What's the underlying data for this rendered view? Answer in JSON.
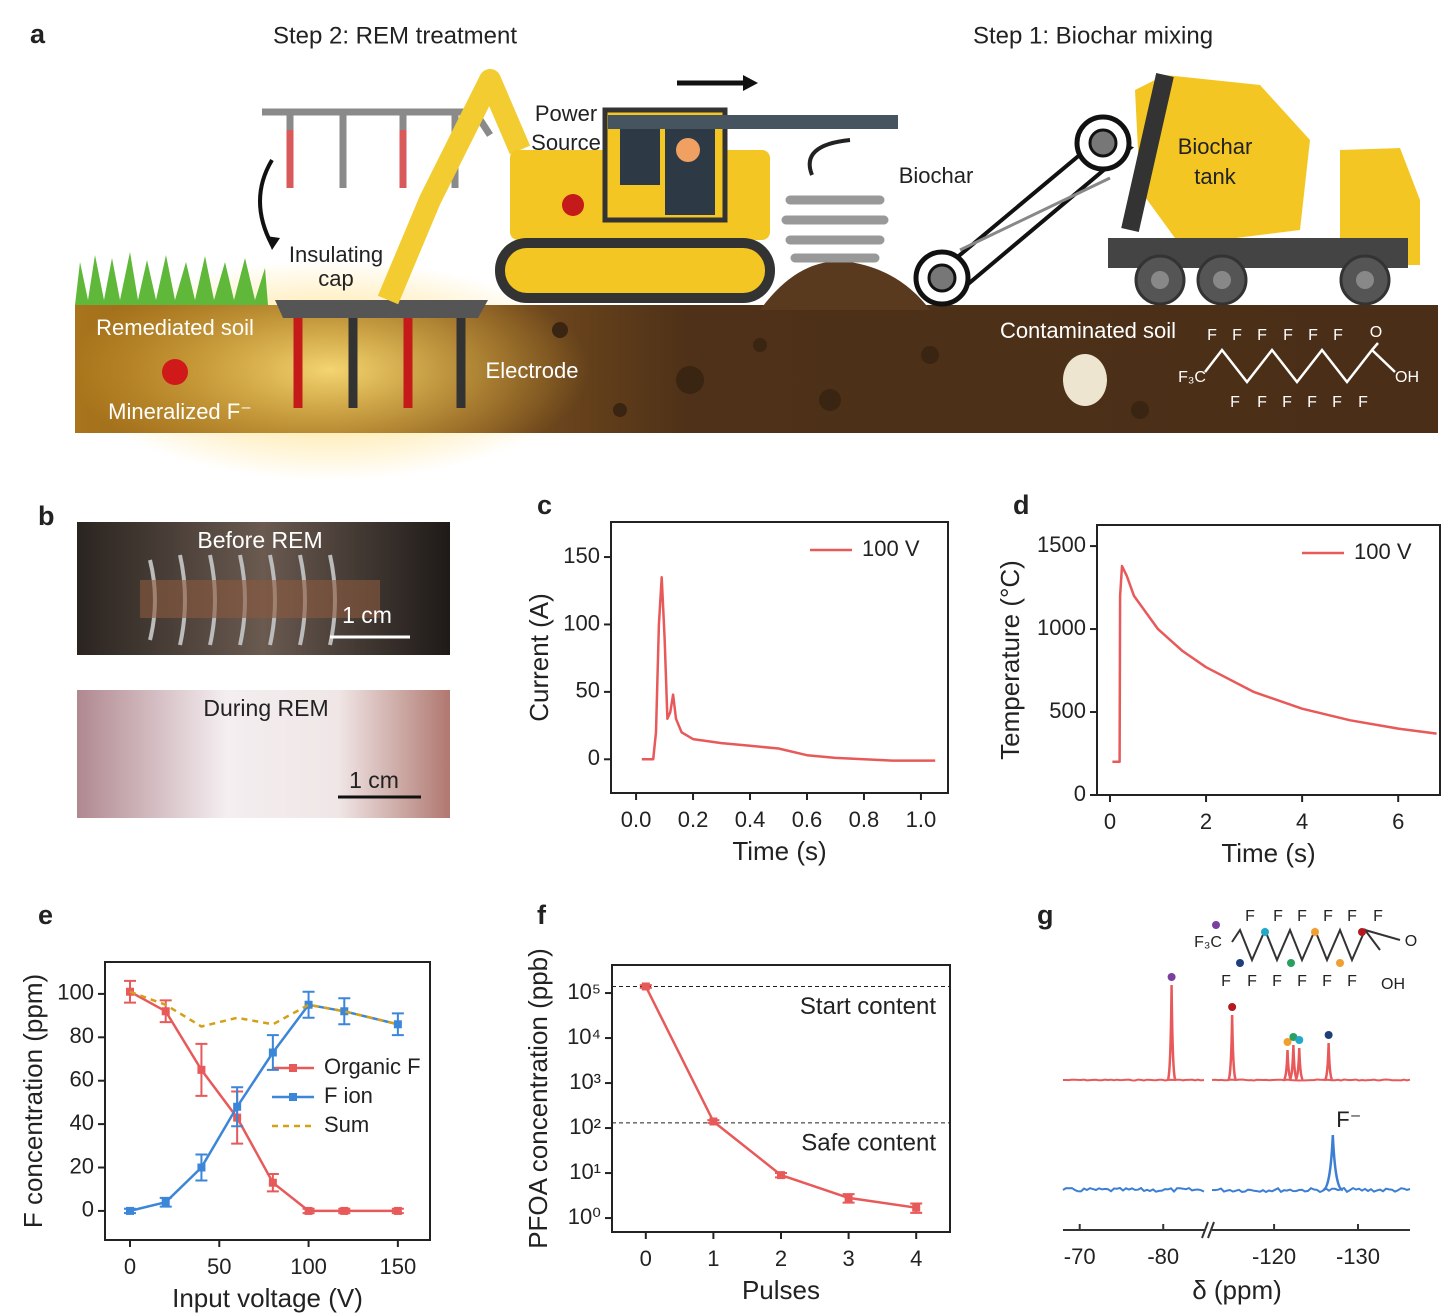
{
  "panel_labels": [
    "a",
    "b",
    "c",
    "d",
    "e",
    "f",
    "g"
  ],
  "panel_a": {
    "step2": "Step 2: REM treatment",
    "step1": "Step 1: Biochar mixing",
    "power_source": [
      "Power",
      "Source"
    ],
    "biochar": "Biochar",
    "biochar_tank": [
      "Biochar",
      "tank"
    ],
    "insulating_cap": [
      "Insulating",
      "cap"
    ],
    "remediated_soil": "Remediated soil",
    "mineralized": "Mineralized F⁻",
    "electrode": "Electrode",
    "contaminated_soil": "Contaminated soil",
    "structure": {
      "top": [
        "F",
        "F",
        "F",
        "F",
        "F",
        "F"
      ],
      "bottom": [
        "F",
        "F",
        "F",
        "F",
        "F",
        "F"
      ],
      "head": "F₃C",
      "o": "O",
      "oh": "OH"
    }
  },
  "panel_b": {
    "before": "Before REM",
    "during": "During REM",
    "scale_bars": [
      "1 cm",
      "1 cm"
    ]
  },
  "chart_data": [
    {
      "type": "line",
      "xlabel": "Time (s)",
      "ylabel": "Current (A)",
      "xlim": [
        -0.088,
        1.095
      ],
      "ylim": [
        -25,
        176
      ],
      "xticks": [
        {
          "value": 0,
          "label": "0.0"
        },
        0.2,
        0.4,
        0.6,
        0.8,
        {
          "value": 1,
          "label": "1.0"
        }
      ],
      "yticks": [
        0,
        50,
        100,
        150
      ],
      "legend": "upper right",
      "series": [
        {
          "name": "100 V",
          "color": "#e8595a",
          "x": [
            0.02,
            0.06,
            0.07,
            0.08,
            0.09,
            0.1,
            0.11,
            0.12,
            0.13,
            0.14,
            0.16,
            0.2,
            0.3,
            0.4,
            0.5,
            0.6,
            0.7,
            0.8,
            0.9,
            1.05
          ],
          "values": [
            0,
            0,
            20,
            100,
            135,
            90,
            30,
            35,
            48,
            30,
            20,
            15,
            12,
            10,
            8,
            3,
            1,
            0,
            -1,
            -1
          ]
        }
      ]
    },
    {
      "type": "line",
      "xlabel": "Time (s)",
      "ylabel": "Temperature (°C)",
      "xlim": [
        -0.27,
        6.87
      ],
      "ylim": [
        0,
        1627
      ],
      "xticks": [
        0,
        2,
        4,
        6
      ],
      "yticks": [
        0,
        500,
        1000,
        1500
      ],
      "legend": "upper right",
      "series": [
        {
          "name": "100 V",
          "color": "#e8595a",
          "x": [
            0.05,
            0.2,
            0.21,
            0.25,
            0.35,
            0.5,
            1,
            1.5,
            2,
            3,
            4,
            5,
            6,
            6.8
          ],
          "values": [
            200,
            200,
            1200,
            1380,
            1320,
            1200,
            1000,
            870,
            770,
            620,
            520,
            450,
            400,
            370
          ]
        }
      ]
    },
    {
      "type": "line",
      "xlabel": "Input voltage (V)",
      "ylabel": "F concentration (ppm)",
      "xlim": [
        -14,
        168
      ],
      "ylim": [
        -13.4,
        114.7
      ],
      "xticks": [
        0,
        50,
        100,
        150
      ],
      "yticks": [
        0,
        20,
        40,
        60,
        80,
        100
      ],
      "legend": "center right",
      "x": [
        0,
        20,
        40,
        60,
        80,
        100,
        120,
        150
      ],
      "series": [
        {
          "name": "Organic F",
          "color": "#e8595a",
          "marker": "square",
          "values": [
            101,
            92,
            65,
            43,
            13,
            0,
            0,
            0
          ],
          "errors": [
            5,
            5,
            12,
            12,
            4,
            1,
            1,
            1
          ]
        },
        {
          "name": "F ion",
          "color": "#3b86d8",
          "marker": "square",
          "values": [
            0,
            4,
            20,
            48,
            73,
            95,
            92,
            86
          ],
          "errors": [
            1,
            2,
            6,
            9,
            8,
            6,
            6,
            5
          ]
        },
        {
          "name": "Sum",
          "color": "#d4a017",
          "dash": true,
          "values": [
            101,
            95,
            85,
            89,
            86,
            95,
            92,
            86
          ]
        }
      ]
    },
    {
      "type": "line",
      "xlabel": "Pulses",
      "ylabel": "PFOA concentration (ppb)",
      "log_y": true,
      "xlim": [
        -0.5,
        4.5
      ],
      "ylim": [
        0.49,
        420000
      ],
      "xticks": [
        0,
        1,
        2,
        3,
        4
      ],
      "yticks": [
        {
          "value": 1,
          "label": "10⁰"
        },
        {
          "value": 10,
          "label": "10¹"
        },
        {
          "value": 100,
          "label": "10²"
        },
        {
          "value": 1000,
          "label": "10³"
        },
        {
          "value": 10000,
          "label": "10⁴"
        },
        {
          "value": 100000,
          "label": "10⁵"
        }
      ],
      "x": [
        0,
        1,
        2,
        3,
        4
      ],
      "reference_lines": [
        {
          "value": 140000,
          "label": "Start content"
        },
        {
          "value": 130,
          "label": "Safe content"
        }
      ],
      "series": [
        {
          "color": "#e8595a",
          "marker": "square",
          "values": [
            140000,
            140,
            9,
            2.8,
            1.7
          ],
          "errors": [
            10000,
            10,
            1,
            0.6,
            0.4
          ]
        }
      ]
    },
    {
      "type": "spectrum",
      "xlabel": "δ (ppm)",
      "xlim_segments": [
        [
          -68,
          -85
        ],
        [
          -112.6,
          -136.2
        ]
      ],
      "xticks": [
        -70,
        -80,
        -120,
        -130
      ],
      "structure": {
        "top": [
          "F",
          "F",
          "F",
          "F",
          "F",
          "F"
        ],
        "bottom": [
          "F",
          "F",
          "F",
          "F",
          "F",
          "F"
        ],
        "head": "F₃C",
        "o": "O",
        "oh": "OH"
      },
      "series": [
        {
          "color": "#e8595a",
          "x": [
            -81,
            -115,
            -121.6,
            -122.3,
            -123,
            -126.5
          ],
          "values": [
            95,
            65,
            30,
            35,
            32,
            37
          ],
          "marker_colors": [
            "#7b3fa0",
            "#b3191e",
            "#f0a030",
            "#2aa060",
            "#22a8c8",
            "#1f3f7a"
          ]
        },
        {
          "color": "#3b7fd4",
          "x": [
            -127
          ],
          "values": [
            55
          ],
          "label": "F⁻"
        }
      ]
    }
  ]
}
